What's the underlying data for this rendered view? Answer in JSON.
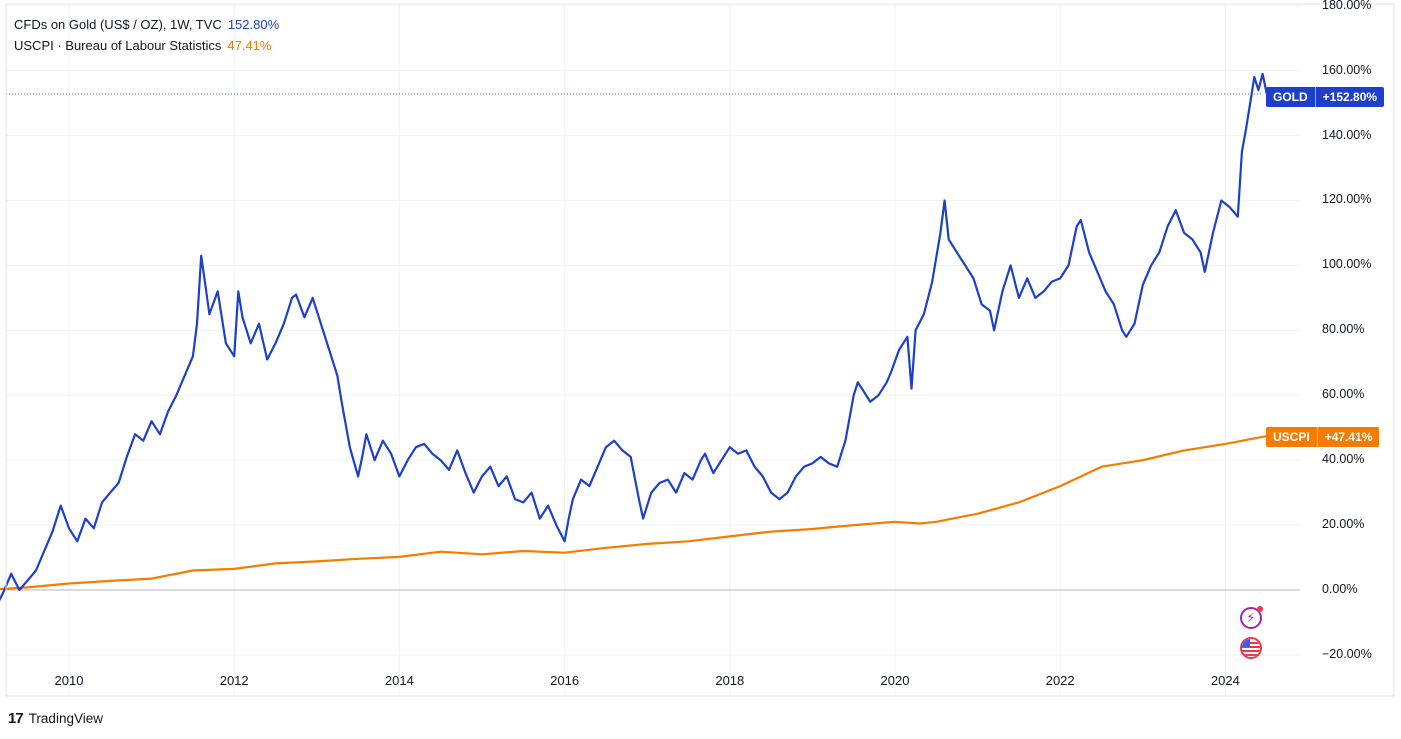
{
  "legend": {
    "gold_label": "CFDs on Gold (US$ / OZ), 1W, TVC",
    "gold_value": "152.80%",
    "cpi_label": "USCPI · Bureau of Labour Statistics",
    "cpi_value": "47.41%"
  },
  "tags": {
    "gold_symbol": "GOLD",
    "gold_value": "+152.80%",
    "cpi_symbol": "USCPI",
    "cpi_value": "+47.41%"
  },
  "brand": {
    "name": "TradingView",
    "logo": "17"
  },
  "colors": {
    "gold": "#1e40c8",
    "cpi": "#f57c00",
    "grid": "#f0f3fa",
    "zero_line": "#b2b5be"
  },
  "icons": [
    "lightning-alert-icon",
    "us-flag-icon"
  ],
  "chart_data": {
    "type": "line",
    "x_unit": "year",
    "y_unit": "%",
    "xlim": [
      2009.0,
      2025.1
    ],
    "ylim": [
      -20,
      180
    ],
    "x_ticks": [
      2010,
      2012,
      2014,
      2016,
      2018,
      2020,
      2022,
      2024
    ],
    "x_tick_labels": [
      "2010",
      "2012",
      "2014",
      "2016",
      "2018",
      "2020",
      "2022",
      "2024"
    ],
    "y_ticks": [
      -20,
      0,
      20,
      40,
      60,
      80,
      100,
      120,
      140,
      160,
      180
    ],
    "y_tick_labels": [
      "−20.00%",
      "0.00%",
      "20.00%",
      "40.00%",
      "60.00%",
      "80.00%",
      "100.00%",
      "120.00%",
      "140.00%",
      "160.00%",
      "180.00%"
    ],
    "grid": true,
    "series": [
      {
        "name": "GOLD",
        "last_value": 152.8,
        "points": [
          [
            2009.0,
            2
          ],
          [
            2009.05,
            -3
          ],
          [
            2009.1,
            -6
          ],
          [
            2009.2,
            -1
          ],
          [
            2009.3,
            5
          ],
          [
            2009.4,
            0
          ],
          [
            2009.5,
            3
          ],
          [
            2009.6,
            6
          ],
          [
            2009.7,
            12
          ],
          [
            2009.8,
            18
          ],
          [
            2009.9,
            26
          ],
          [
            2010.0,
            19
          ],
          [
            2010.1,
            15
          ],
          [
            2010.2,
            22
          ],
          [
            2010.3,
            19
          ],
          [
            2010.4,
            27
          ],
          [
            2010.5,
            30
          ],
          [
            2010.6,
            33
          ],
          [
            2010.7,
            41
          ],
          [
            2010.8,
            48
          ],
          [
            2010.9,
            46
          ],
          [
            2011.0,
            52
          ],
          [
            2011.1,
            48
          ],
          [
            2011.2,
            55
          ],
          [
            2011.3,
            60
          ],
          [
            2011.4,
            66
          ],
          [
            2011.5,
            72
          ],
          [
            2011.55,
            82
          ],
          [
            2011.6,
            103
          ],
          [
            2011.65,
            94
          ],
          [
            2011.7,
            85
          ],
          [
            2011.8,
            92
          ],
          [
            2011.9,
            76
          ],
          [
            2012.0,
            72
          ],
          [
            2012.05,
            92
          ],
          [
            2012.1,
            84
          ],
          [
            2012.2,
            76
          ],
          [
            2012.3,
            82
          ],
          [
            2012.4,
            71
          ],
          [
            2012.5,
            76
          ],
          [
            2012.6,
            82
          ],
          [
            2012.7,
            90
          ],
          [
            2012.75,
            91
          ],
          [
            2012.85,
            84
          ],
          [
            2012.95,
            90
          ],
          [
            2013.05,
            82
          ],
          [
            2013.15,
            74
          ],
          [
            2013.25,
            66
          ],
          [
            2013.3,
            58
          ],
          [
            2013.4,
            44
          ],
          [
            2013.5,
            35
          ],
          [
            2013.55,
            41
          ],
          [
            2013.6,
            48
          ],
          [
            2013.7,
            40
          ],
          [
            2013.8,
            46
          ],
          [
            2013.9,
            42
          ],
          [
            2014.0,
            35
          ],
          [
            2014.1,
            40
          ],
          [
            2014.2,
            44
          ],
          [
            2014.3,
            45
          ],
          [
            2014.4,
            42
          ],
          [
            2014.5,
            40
          ],
          [
            2014.6,
            37
          ],
          [
            2014.7,
            43
          ],
          [
            2014.8,
            36
          ],
          [
            2014.9,
            30
          ],
          [
            2015.0,
            35
          ],
          [
            2015.1,
            38
          ],
          [
            2015.2,
            32
          ],
          [
            2015.3,
            35
          ],
          [
            2015.4,
            28
          ],
          [
            2015.5,
            27
          ],
          [
            2015.6,
            30
          ],
          [
            2015.7,
            22
          ],
          [
            2015.8,
            26
          ],
          [
            2015.9,
            20
          ],
          [
            2016.0,
            15
          ],
          [
            2016.05,
            22
          ],
          [
            2016.1,
            28
          ],
          [
            2016.2,
            34
          ],
          [
            2016.3,
            32
          ],
          [
            2016.4,
            38
          ],
          [
            2016.5,
            44
          ],
          [
            2016.6,
            46
          ],
          [
            2016.7,
            43
          ],
          [
            2016.8,
            41
          ],
          [
            2016.9,
            28
          ],
          [
            2016.95,
            22
          ],
          [
            2017.05,
            30
          ],
          [
            2017.15,
            33
          ],
          [
            2017.25,
            34
          ],
          [
            2017.35,
            30
          ],
          [
            2017.45,
            36
          ],
          [
            2017.55,
            34
          ],
          [
            2017.65,
            40
          ],
          [
            2017.7,
            42
          ],
          [
            2017.8,
            36
          ],
          [
            2017.9,
            40
          ],
          [
            2018.0,
            44
          ],
          [
            2018.1,
            42
          ],
          [
            2018.2,
            43
          ],
          [
            2018.3,
            38
          ],
          [
            2018.4,
            35
          ],
          [
            2018.5,
            30
          ],
          [
            2018.6,
            28
          ],
          [
            2018.7,
            30
          ],
          [
            2018.8,
            35
          ],
          [
            2018.9,
            38
          ],
          [
            2019.0,
            39
          ],
          [
            2019.1,
            41
          ],
          [
            2019.2,
            39
          ],
          [
            2019.3,
            38
          ],
          [
            2019.4,
            46
          ],
          [
            2019.5,
            60
          ],
          [
            2019.55,
            64
          ],
          [
            2019.6,
            62
          ],
          [
            2019.7,
            58
          ],
          [
            2019.8,
            60
          ],
          [
            2019.9,
            64
          ],
          [
            2019.95,
            67
          ],
          [
            2020.05,
            74
          ],
          [
            2020.15,
            78
          ],
          [
            2020.2,
            62
          ],
          [
            2020.25,
            80
          ],
          [
            2020.35,
            85
          ],
          [
            2020.45,
            95
          ],
          [
            2020.55,
            110
          ],
          [
            2020.6,
            120
          ],
          [
            2020.65,
            108
          ],
          [
            2020.75,
            104
          ],
          [
            2020.85,
            100
          ],
          [
            2020.95,
            96
          ],
          [
            2021.05,
            88
          ],
          [
            2021.15,
            86
          ],
          [
            2021.2,
            80
          ],
          [
            2021.3,
            92
          ],
          [
            2021.4,
            100
          ],
          [
            2021.5,
            90
          ],
          [
            2021.6,
            96
          ],
          [
            2021.7,
            90
          ],
          [
            2021.8,
            92
          ],
          [
            2021.9,
            95
          ],
          [
            2022.0,
            96
          ],
          [
            2022.1,
            100
          ],
          [
            2022.2,
            112
          ],
          [
            2022.25,
            114
          ],
          [
            2022.35,
            104
          ],
          [
            2022.45,
            98
          ],
          [
            2022.55,
            92
          ],
          [
            2022.65,
            88
          ],
          [
            2022.75,
            80
          ],
          [
            2022.8,
            78
          ],
          [
            2022.9,
            82
          ],
          [
            2023.0,
            94
          ],
          [
            2023.1,
            100
          ],
          [
            2023.2,
            104
          ],
          [
            2023.3,
            112
          ],
          [
            2023.4,
            117
          ],
          [
            2023.5,
            110
          ],
          [
            2023.6,
            108
          ],
          [
            2023.7,
            104
          ],
          [
            2023.75,
            98
          ],
          [
            2023.85,
            110
          ],
          [
            2023.95,
            120
          ],
          [
            2024.05,
            118
          ],
          [
            2024.15,
            115
          ],
          [
            2024.2,
            135
          ],
          [
            2024.25,
            142
          ],
          [
            2024.3,
            150
          ],
          [
            2024.35,
            158
          ],
          [
            2024.4,
            154
          ],
          [
            2024.45,
            159
          ],
          [
            2024.5,
            153
          ],
          [
            2024.55,
            152.8
          ]
        ]
      },
      {
        "name": "USCPI",
        "last_value": 47.41,
        "points": [
          [
            2009.0,
            0
          ],
          [
            2009.5,
            0.8
          ],
          [
            2010.0,
            2
          ],
          [
            2010.5,
            2.8
          ],
          [
            2011.0,
            3.5
          ],
          [
            2011.5,
            6
          ],
          [
            2012.0,
            6.5
          ],
          [
            2012.5,
            8.2
          ],
          [
            2013.0,
            8.8
          ],
          [
            2013.5,
            9.6
          ],
          [
            2014.0,
            10.2
          ],
          [
            2014.5,
            11.8
          ],
          [
            2015.0,
            11
          ],
          [
            2015.5,
            12
          ],
          [
            2016.0,
            11.5
          ],
          [
            2016.5,
            13
          ],
          [
            2017.0,
            14.2
          ],
          [
            2017.5,
            15
          ],
          [
            2018.0,
            16.5
          ],
          [
            2018.5,
            18
          ],
          [
            2019.0,
            18.8
          ],
          [
            2019.5,
            20
          ],
          [
            2020.0,
            21
          ],
          [
            2020.3,
            20.5
          ],
          [
            2020.5,
            21
          ],
          [
            2021.0,
            23.5
          ],
          [
            2021.5,
            27
          ],
          [
            2022.0,
            32
          ],
          [
            2022.5,
            38
          ],
          [
            2023.0,
            40
          ],
          [
            2023.5,
            43
          ],
          [
            2024.0,
            45
          ],
          [
            2024.5,
            47.41
          ]
        ]
      }
    ]
  }
}
